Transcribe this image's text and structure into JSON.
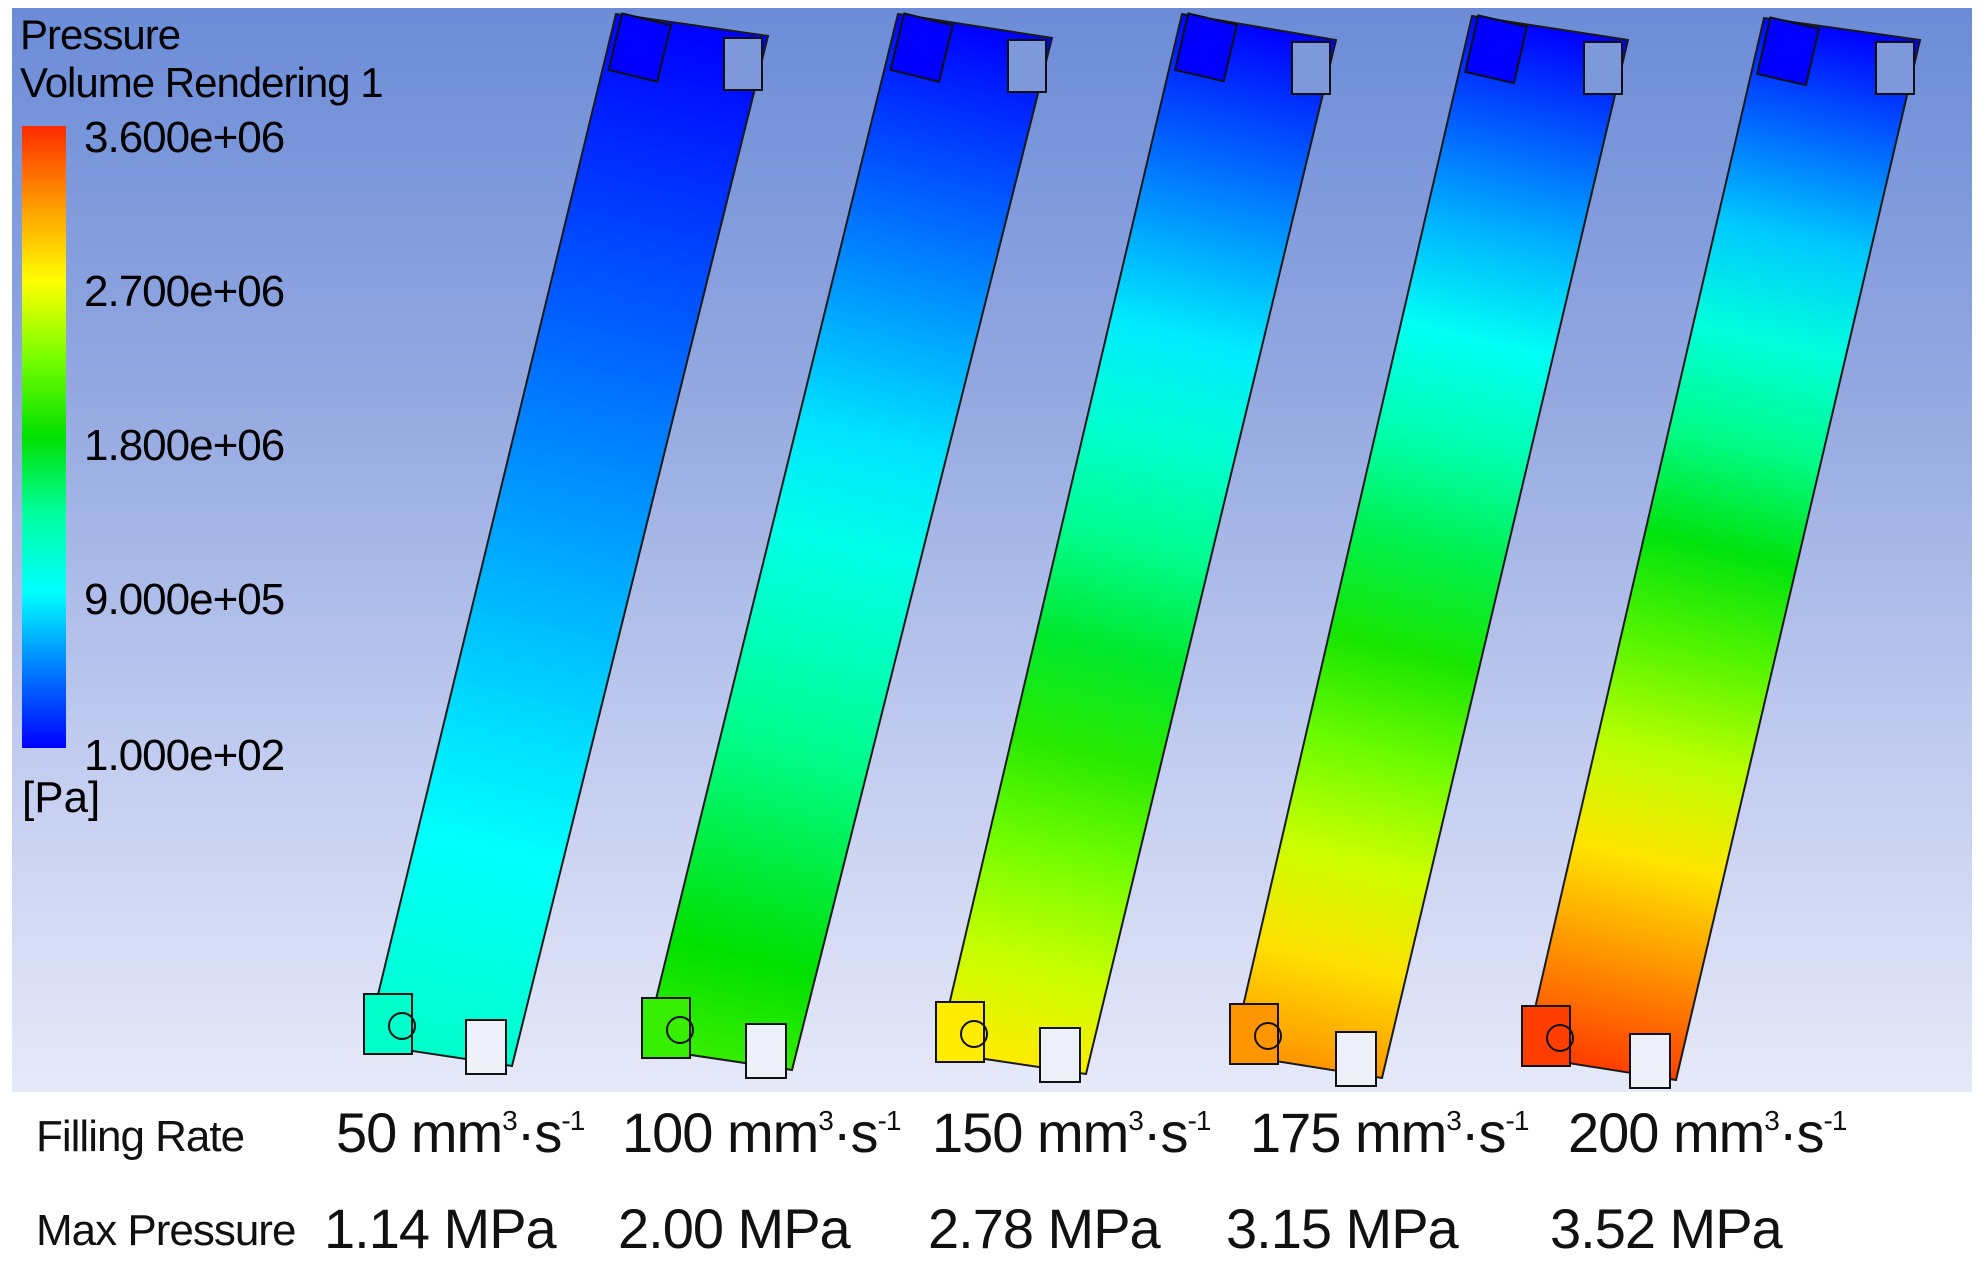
{
  "legend": {
    "title": "Pressure",
    "subtitle": "Volume Rendering 1",
    "ticks": [
      "3.600e+06",
      "2.700e+06",
      "1.800e+06",
      "9.000e+05",
      "1.000e+02"
    ],
    "unit": "[Pa]",
    "range_pa": [
      100,
      3600000
    ],
    "colormap": [
      "#0000ff",
      "#0080ff",
      "#00ffff",
      "#00ff9c",
      "#00e000",
      "#7aff00",
      "#ffff00",
      "#ff9500",
      "#ff2a00"
    ]
  },
  "rows": {
    "filling_rate_label": "Filling Rate",
    "max_pressure_label": "Max Pressure"
  },
  "cases": [
    {
      "rate_num": "50",
      "rate_unit": " mm",
      "rate_exp1": "3",
      "rate_mid": "·s",
      "rate_exp2": "-1",
      "max_pressure": "1.14 MPa",
      "max_pressure_mpa": 1.14
    },
    {
      "rate_num": "100",
      "rate_unit": " mm",
      "rate_exp1": "3",
      "rate_mid": "·s",
      "rate_exp2": "-1",
      "max_pressure": "2.00 MPa",
      "max_pressure_mpa": 2.0
    },
    {
      "rate_num": "150",
      "rate_unit": " mm",
      "rate_exp1": "3",
      "rate_mid": "·s",
      "rate_exp2": "-1",
      "max_pressure": "2.78 MPa",
      "max_pressure_mpa": 2.78
    },
    {
      "rate_num": "175",
      "rate_unit": " mm",
      "rate_exp1": "3",
      "rate_mid": "·s",
      "rate_exp2": "-1",
      "max_pressure": "3.15 MPa",
      "max_pressure_mpa": 3.15
    },
    {
      "rate_num": "200",
      "rate_unit": " mm",
      "rate_exp1": "3",
      "rate_mid": "·s",
      "rate_exp2": "-1",
      "max_pressure": "3.52 MPa",
      "max_pressure_mpa": 3.52
    }
  ]
}
